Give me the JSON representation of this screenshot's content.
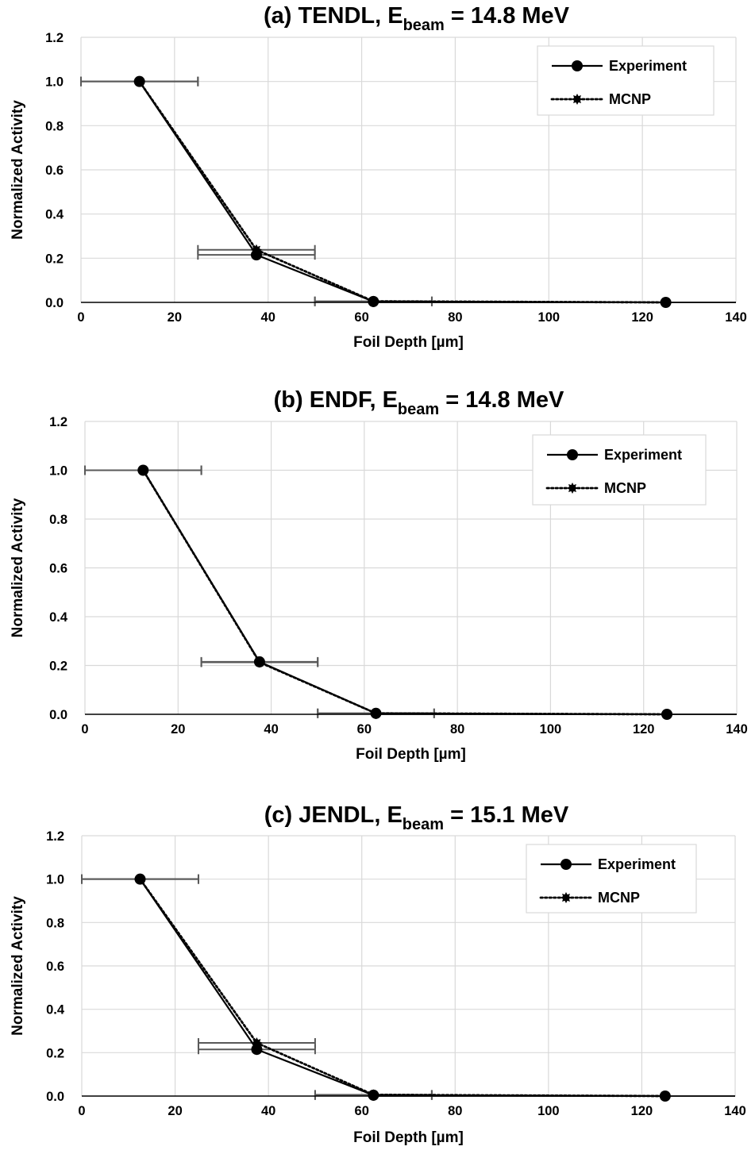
{
  "chart_data": [
    {
      "type": "line",
      "title_main": "(a) TENDL, E",
      "title_sub": "beam",
      "title_tail": " = 14.8 MeV",
      "xlabel": "Foil Depth [µm]",
      "ylabel": "Normalized Activity",
      "xlim": [
        0,
        140
      ],
      "ylim": [
        0,
        1.2
      ],
      "xticks": [
        "0",
        "20",
        "40",
        "60",
        "80",
        "100",
        "120",
        "140"
      ],
      "yticks": [
        "0.0",
        "0.2",
        "0.4",
        "0.6",
        "0.8",
        "1.0",
        "1.2"
      ],
      "grid": true,
      "legend_position": "top-right",
      "series": [
        {
          "name": "Experiment",
          "style": "solid",
          "marker": "circle",
          "x": [
            12.5,
            37.5,
            62.5,
            125
          ],
          "y": [
            1.0,
            0.215,
            0.004,
            0.0
          ],
          "xerr": [
            12.5,
            12.5,
            12.5,
            62.5
          ]
        },
        {
          "name": "MCNP",
          "style": "dotted",
          "marker": "star",
          "x": [
            12.5,
            37.5,
            62.5,
            125
          ],
          "y": [
            1.0,
            0.238,
            0.005,
            0.0
          ],
          "xerr": [
            12.5,
            12.5,
            12.5,
            62.5
          ]
        }
      ]
    },
    {
      "type": "line",
      "title_main": "(b) ENDF, E",
      "title_sub": "beam",
      "title_tail": " = 14.8 MeV",
      "xlabel": "Foil Depth [µm]",
      "ylabel": "Normalized Activity",
      "xlim": [
        0,
        140
      ],
      "ylim": [
        0,
        1.2
      ],
      "xticks": [
        "0",
        "20",
        "40",
        "60",
        "80",
        "100",
        "120",
        "140"
      ],
      "yticks": [
        "0.0",
        "0.2",
        "0.4",
        "0.6",
        "0.8",
        "1.0",
        "1.2"
      ],
      "grid": true,
      "legend_position": "top-right",
      "series": [
        {
          "name": "Experiment",
          "style": "solid",
          "marker": "circle",
          "x": [
            12.5,
            37.5,
            62.5,
            125
          ],
          "y": [
            1.0,
            0.215,
            0.004,
            0.0
          ],
          "xerr": [
            12.5,
            12.5,
            12.5,
            62.5
          ]
        },
        {
          "name": "MCNP",
          "style": "dotted",
          "marker": "star",
          "x": [
            12.5,
            37.5,
            62.5,
            125
          ],
          "y": [
            1.0,
            0.213,
            0.004,
            0.0
          ],
          "xerr": [
            12.5,
            12.5,
            12.5,
            62.5
          ]
        }
      ]
    },
    {
      "type": "line",
      "title_main": "(c) JENDL, E",
      "title_sub": "beam",
      "title_tail": " = 15.1 MeV",
      "xlabel": "Foil Depth [µm]",
      "ylabel": "Normalized Activity",
      "xlim": [
        0,
        140
      ],
      "ylim": [
        0,
        1.2
      ],
      "xticks": [
        "0",
        "20",
        "40",
        "60",
        "80",
        "100",
        "120",
        "140"
      ],
      "yticks": [
        "0.0",
        "0.2",
        "0.4",
        "0.6",
        "0.8",
        "1.0",
        "1.2"
      ],
      "grid": true,
      "legend_position": "top-right",
      "series": [
        {
          "name": "Experiment",
          "style": "solid",
          "marker": "circle",
          "x": [
            12.5,
            37.5,
            62.5,
            125
          ],
          "y": [
            1.0,
            0.215,
            0.004,
            0.0
          ],
          "xerr": [
            12.5,
            12.5,
            12.5,
            62.5
          ]
        },
        {
          "name": "MCNP",
          "style": "dotted",
          "marker": "star",
          "x": [
            12.5,
            37.5,
            62.5,
            125
          ],
          "y": [
            1.0,
            0.245,
            0.006,
            0.0
          ],
          "xerr": [
            12.5,
            12.5,
            12.5,
            62.5
          ]
        }
      ]
    }
  ]
}
